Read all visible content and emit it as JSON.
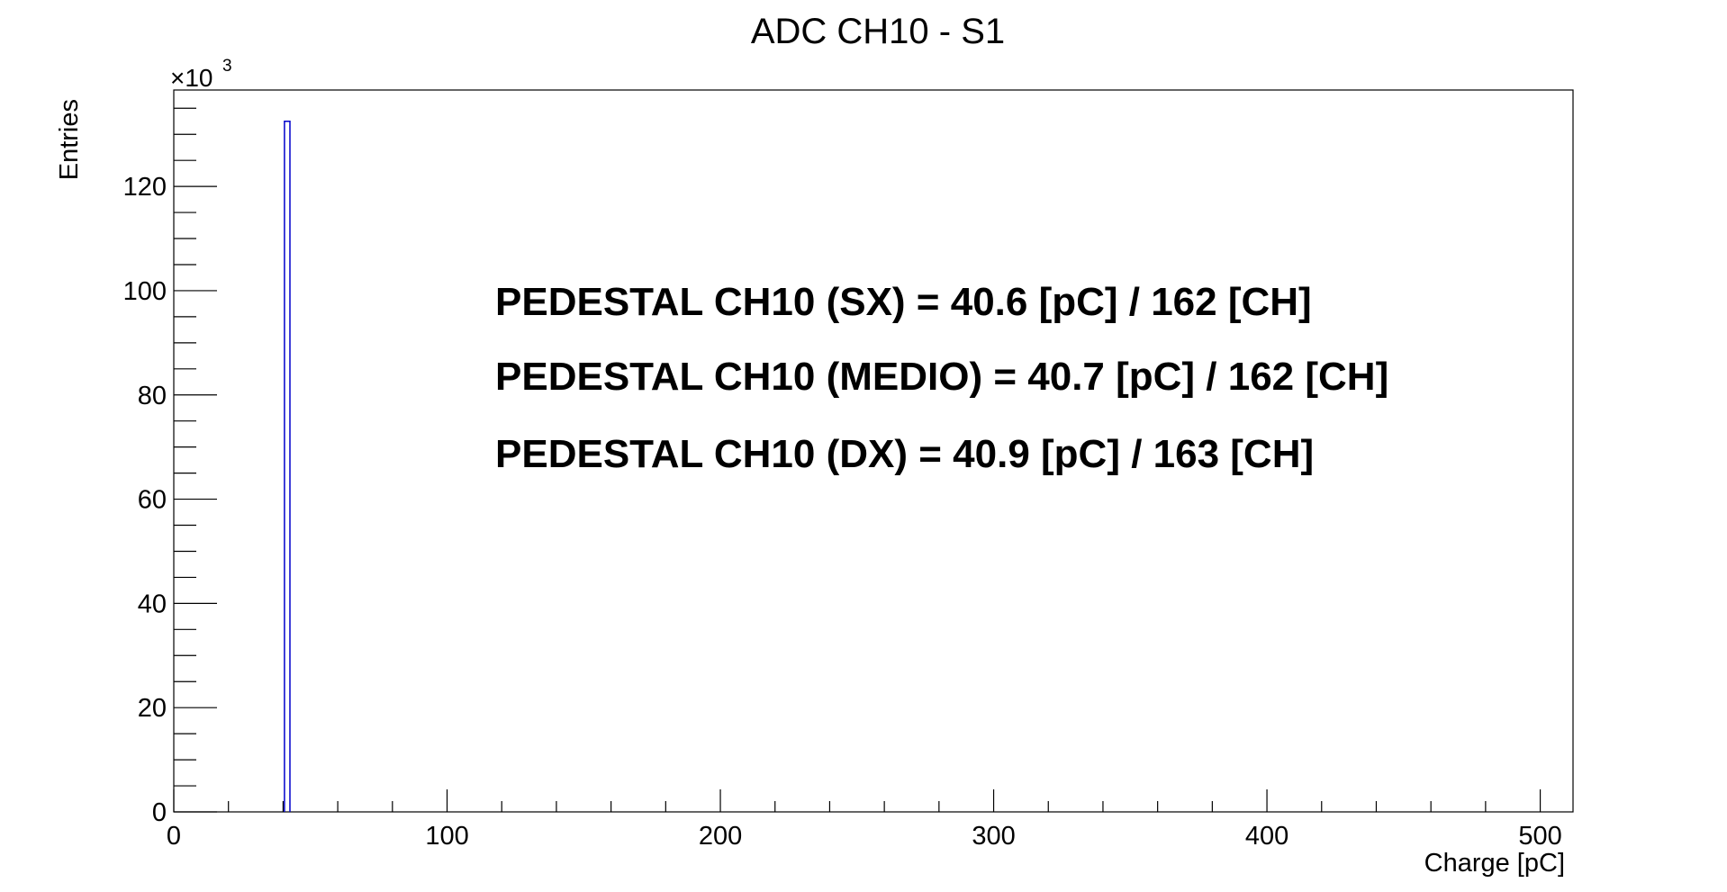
{
  "chart_data": {
    "type": "bar",
    "title": "ADC CH10 - S1",
    "xlabel": "Charge [pC]",
    "ylabel": "Entries",
    "y_multiplier": {
      "base": "×10",
      "exponent": "3"
    },
    "xlim": [
      0,
      512
    ],
    "ylim": [
      0,
      138.5
    ],
    "x_ticks": [
      0,
      100,
      200,
      300,
      400,
      500
    ],
    "y_ticks": [
      0,
      20,
      40,
      60,
      80,
      100,
      120
    ],
    "x_minor_step": 20,
    "y_minor_step": 5,
    "grid": false,
    "legend": "none",
    "line_color": "#0000cc",
    "bins": [
      {
        "x_low": 40.5,
        "x_high": 42.5,
        "value": 132.5
      }
    ],
    "annotations": [
      "PEDESTAL CH10 (SX) = 40.6 [pC] / 162 [CH]",
      "PEDESTAL CH10 (MEDIO) = 40.7 [pC] / 162 [CH]",
      "PEDESTAL CH10 (DX) = 40.9 [pC] / 163 [CH]"
    ]
  }
}
